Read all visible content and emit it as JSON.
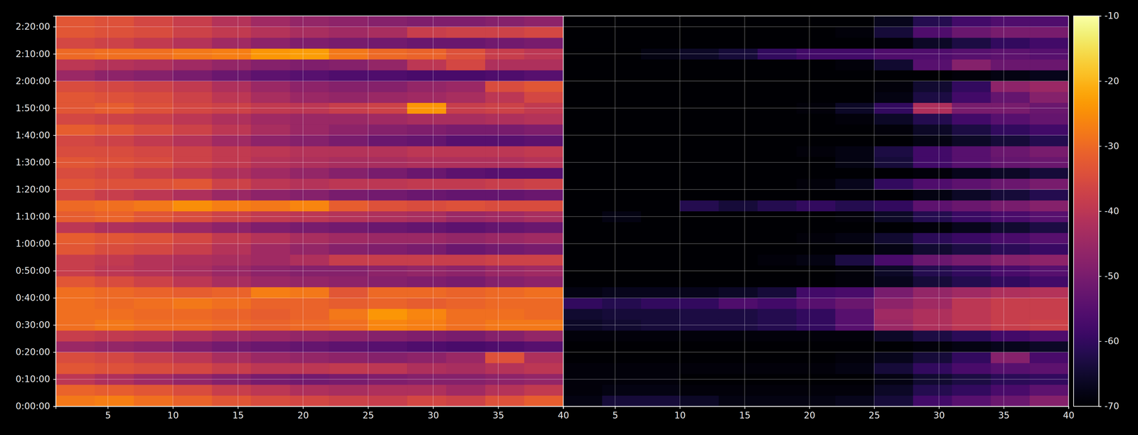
{
  "chart_data": [
    {
      "type": "heatmap",
      "x_edges": [
        1,
        4,
        7,
        10,
        13,
        16,
        19,
        22,
        25,
        28,
        31,
        34,
        37,
        40
      ],
      "y_edges": [
        0,
        240,
        480,
        720,
        960,
        1200,
        1440,
        1680,
        1920,
        2160,
        2400,
        2640,
        2880,
        3120,
        3360,
        3600,
        3840,
        4080,
        4320,
        4560,
        4800,
        5040,
        5280,
        5520,
        5760,
        6000,
        6240,
        6480,
        6720,
        6960,
        7200,
        7440,
        7680,
        7920,
        8160,
        8400,
        8640
      ],
      "cells": [
        [
          -28,
          -27,
          -29,
          -31,
          -33,
          -35,
          -36,
          -37,
          -38,
          -36,
          -37,
          -34,
          -32
        ],
        [
          -31,
          -32,
          -33,
          -35,
          -38,
          -40,
          -42,
          -43,
          -42,
          -42,
          -44,
          -41,
          -39
        ],
        [
          -40,
          -42,
          -44,
          -46,
          -48,
          -50,
          -51,
          -50,
          -49,
          -48,
          -48,
          -47,
          -46
        ],
        [
          -33,
          -34,
          -35,
          -36,
          -38,
          -40,
          -40,
          -39,
          -40,
          -42,
          -43,
          -41,
          -40
        ],
        [
          -35,
          -36,
          -38,
          -40,
          -43,
          -45,
          -46,
          -47,
          -48,
          -47,
          -45,
          -34,
          -42
        ],
        [
          -45,
          -46,
          -47,
          -49,
          -51,
          -52,
          -53,
          -54,
          -55,
          -56,
          -57,
          -56,
          -55
        ],
        [
          -38,
          -39,
          -40,
          -42,
          -44,
          -45,
          -46,
          -47,
          -48,
          -49,
          -50,
          -48,
          -46
        ],
        [
          -29,
          -28,
          -29,
          -29,
          -30,
          -31,
          -30,
          -29,
          -26,
          -27,
          -29,
          -28,
          -28
        ],
        [
          -29,
          -29,
          -30,
          -30,
          -31,
          -32,
          -31,
          -28,
          -24,
          -26,
          -29,
          -29,
          -30
        ],
        [
          -29,
          -30,
          -29,
          -28,
          -29,
          -31,
          -31,
          -32,
          -31,
          -32,
          -31,
          -30,
          -30
        ],
        [
          -29,
          -30,
          -31,
          -32,
          -31,
          -27,
          -28,
          -33,
          -30,
          -30,
          -31,
          -30,
          -29
        ],
        [
          -33,
          -35,
          -37,
          -40,
          -43,
          -45,
          -46,
          -47,
          -48,
          -49,
          -50,
          -48,
          -47
        ],
        [
          -38,
          -40,
          -41,
          -43,
          -45,
          -47,
          -48,
          -48,
          -47,
          -46,
          -47,
          -45,
          -44
        ],
        [
          -38,
          -39,
          -41,
          -42,
          -43,
          -44,
          -42,
          -38,
          -38,
          -38,
          -38,
          -37,
          -37
        ],
        [
          -33,
          -35,
          -36,
          -38,
          -41,
          -44,
          -46,
          -48,
          -49,
          -50,
          -52,
          -51,
          -50
        ],
        [
          -32,
          -33,
          -34,
          -36,
          -39,
          -41,
          -43,
          -44,
          -45,
          -45,
          -46,
          -45,
          -44
        ],
        [
          -40,
          -42,
          -43,
          -45,
          -47,
          -49,
          -50,
          -51,
          -52,
          -53,
          -54,
          -53,
          -52
        ],
        [
          -32,
          -31,
          -33,
          -35,
          -37,
          -39,
          -40,
          -41,
          -42,
          -43,
          -45,
          -44,
          -43
        ],
        [
          -30,
          -29,
          -28,
          -25,
          -27,
          -28,
          -26,
          -32,
          -34,
          -35,
          -34,
          -35,
          -35
        ],
        [
          -36,
          -38,
          -40,
          -42,
          -45,
          -47,
          -48,
          -50,
          -51,
          -52,
          -53,
          -53,
          -52
        ],
        [
          -33,
          -34,
          -34,
          -33,
          -37,
          -40,
          -41,
          -40,
          -40,
          -39,
          -39,
          -38,
          -37
        ],
        [
          -35,
          -36,
          -38,
          -40,
          -42,
          -44,
          -46,
          -48,
          -50,
          -52,
          -54,
          -55,
          -55
        ],
        [
          -33,
          -34,
          -35,
          -37,
          -39,
          -41,
          -42,
          -43,
          -43,
          -42,
          -42,
          -42,
          -41
        ],
        [
          -35,
          -35,
          -36,
          -37,
          -39,
          -40,
          -41,
          -41,
          -41,
          -40,
          -40,
          -40,
          -39
        ],
        [
          -36,
          -37,
          -39,
          -41,
          -44,
          -47,
          -48,
          -50,
          -52,
          -53,
          -55,
          -55,
          -54
        ],
        [
          -32,
          -33,
          -35,
          -37,
          -40,
          -43,
          -45,
          -47,
          -48,
          -49,
          -50,
          -50,
          -49
        ],
        [
          -36,
          -37,
          -38,
          -40,
          -42,
          -44,
          -45,
          -45,
          -44,
          -43,
          -43,
          -42,
          -41
        ],
        [
          -33,
          -32,
          -34,
          -36,
          -37,
          -39,
          -40,
          -38,
          -37,
          -24,
          -38,
          -37,
          -39
        ],
        [
          -33,
          -34,
          -35,
          -37,
          -40,
          -43,
          -45,
          -46,
          -45,
          -44,
          -43,
          -40,
          -36
        ],
        [
          -35,
          -36,
          -37,
          -39,
          -42,
          -45,
          -47,
          -48,
          -48,
          -46,
          -45,
          -35,
          -33
        ],
        [
          -45,
          -47,
          -48,
          -50,
          -52,
          -54,
          -55,
          -56,
          -56,
          -57,
          -57,
          -56,
          -55
        ],
        [
          -40,
          -41,
          -42,
          -44,
          -46,
          -48,
          -49,
          -48,
          -46,
          -40,
          -36,
          -42,
          -42
        ],
        [
          -30,
          -29,
          -29,
          -28,
          -27,
          -24,
          -23,
          -28,
          -30,
          -31,
          -34,
          -38,
          -40
        ],
        [
          -36,
          -37,
          -39,
          -41,
          -44,
          -47,
          -49,
          -50,
          -51,
          -52,
          -52,
          -51,
          -50
        ],
        [
          -33,
          -34,
          -35,
          -37,
          -39,
          -41,
          -43,
          -44,
          -43,
          -38,
          -37,
          -37,
          -36
        ],
        [
          -33,
          -34,
          -36,
          -38,
          -41,
          -44,
          -46,
          -47,
          -48,
          -49,
          -49,
          -48,
          -47
        ]
      ],
      "xlim": [
        1,
        40
      ],
      "xticks": [
        5,
        10,
        15,
        20,
        25,
        30,
        35,
        40
      ],
      "ylim": [
        0,
        8640
      ],
      "yticks": [
        {
          "value": 0,
          "label": "0:00:00"
        },
        {
          "value": 600,
          "label": "0:10:00"
        },
        {
          "value": 1200,
          "label": "0:20:00"
        },
        {
          "value": 1800,
          "label": "0:30:00"
        },
        {
          "value": 2400,
          "label": "0:40:00"
        },
        {
          "value": 3000,
          "label": "0:50:00"
        },
        {
          "value": 3600,
          "label": "1:00:00"
        },
        {
          "value": 4200,
          "label": "1:10:00"
        },
        {
          "value": 4800,
          "label": "1:20:00"
        },
        {
          "value": 5400,
          "label": "1:30:00"
        },
        {
          "value": 6000,
          "label": "1:40:00"
        },
        {
          "value": 6600,
          "label": "1:50:00"
        },
        {
          "value": 7200,
          "label": "2:00:00"
        },
        {
          "value": 7800,
          "label": "2:10:00"
        },
        {
          "value": 8400,
          "label": "2:20:00"
        }
      ],
      "zlim": [
        -70,
        -10
      ],
      "grid": true
    },
    {
      "type": "heatmap",
      "x_edges": [
        1,
        4,
        7,
        10,
        13,
        16,
        19,
        22,
        25,
        28,
        31,
        34,
        37,
        40
      ],
      "y_edges": [
        0,
        240,
        480,
        720,
        960,
        1200,
        1440,
        1680,
        1920,
        2160,
        2400,
        2640,
        2880,
        3120,
        3360,
        3600,
        3840,
        4080,
        4320,
        4560,
        4800,
        5040,
        5280,
        5520,
        5760,
        6000,
        6240,
        6480,
        6720,
        6960,
        7200,
        7440,
        7680,
        7920,
        8160,
        8400,
        8640
      ],
      "cells": [
        [
          -68,
          -64,
          -64,
          -66,
          -68,
          -68,
          -68,
          -67,
          -64,
          -58,
          -55,
          -52,
          -48
        ],
        [
          -69,
          -68,
          -68,
          -69,
          -69,
          -69,
          -69,
          -69,
          -66,
          -62,
          -60,
          -57,
          -54
        ],
        [
          -69,
          -69,
          -69,
          -70,
          -70,
          -70,
          -70,
          -70,
          -68,
          -65,
          -63,
          -61,
          -60
        ],
        [
          -69,
          -69,
          -69,
          -69,
          -69,
          -69,
          -69,
          -68,
          -64,
          -60,
          -57,
          -55,
          -54
        ],
        [
          -70,
          -70,
          -70,
          -70,
          -70,
          -70,
          -70,
          -69,
          -67,
          -64,
          -60,
          -48,
          -57
        ],
        [
          -70,
          -70,
          -70,
          -70,
          -70,
          -70,
          -70,
          -70,
          -70,
          -69,
          -68,
          -67,
          -66
        ],
        [
          -69,
          -69,
          -69,
          -69,
          -69,
          -69,
          -69,
          -69,
          -66,
          -63,
          -61,
          -58,
          -56
        ],
        [
          -66,
          -65,
          -64,
          -63,
          -63,
          -62,
          -60,
          -55,
          -45,
          -42,
          -40,
          -38,
          -37
        ],
        [
          -65,
          -64,
          -64,
          -63,
          -63,
          -62,
          -60,
          -55,
          -44,
          -42,
          -40,
          -38,
          -38
        ],
        [
          -60,
          -62,
          -60,
          -60,
          -56,
          -58,
          -55,
          -52,
          -47,
          -44,
          -40,
          -38,
          -38
        ],
        [
          -68,
          -67,
          -67,
          -67,
          -66,
          -64,
          -58,
          -57,
          -50,
          -46,
          -44,
          -42,
          -41
        ],
        [
          -70,
          -70,
          -70,
          -70,
          -70,
          -70,
          -70,
          -69,
          -67,
          -64,
          -62,
          -60,
          -58
        ],
        [
          -70,
          -70,
          -70,
          -70,
          -70,
          -70,
          -70,
          -69,
          -66,
          -62,
          -60,
          -57,
          -55
        ],
        [
          -70,
          -70,
          -70,
          -70,
          -70,
          -69,
          -68,
          -63,
          -57,
          -52,
          -50,
          -48,
          -47
        ],
        [
          -70,
          -70,
          -70,
          -70,
          -70,
          -70,
          -70,
          -70,
          -68,
          -65,
          -63,
          -61,
          -59
        ],
        [
          -70,
          -70,
          -70,
          -70,
          -70,
          -70,
          -69,
          -68,
          -65,
          -61,
          -59,
          -57,
          -55
        ],
        [
          -70,
          -70,
          -70,
          -70,
          -70,
          -70,
          -70,
          -70,
          -70,
          -69,
          -67,
          -65,
          -63
        ],
        [
          -70,
          -68,
          -70,
          -70,
          -70,
          -70,
          -70,
          -69,
          -66,
          -62,
          -59,
          -57,
          -55
        ],
        [
          -70,
          -70,
          -70,
          -62,
          -64,
          -62,
          -60,
          -62,
          -60,
          -54,
          -52,
          -50,
          -48
        ],
        [
          -70,
          -70,
          -70,
          -70,
          -70,
          -70,
          -70,
          -70,
          -70,
          -68,
          -66,
          -64,
          -62
        ],
        [
          -70,
          -70,
          -70,
          -70,
          -70,
          -70,
          -69,
          -67,
          -60,
          -56,
          -54,
          -52,
          -50
        ],
        [
          -70,
          -70,
          -70,
          -70,
          -70,
          -70,
          -70,
          -70,
          -70,
          -69,
          -67,
          -66,
          -64
        ],
        [
          -70,
          -70,
          -70,
          -70,
          -70,
          -70,
          -70,
          -68,
          -64,
          -58,
          -55,
          -53,
          -52
        ],
        [
          -70,
          -70,
          -70,
          -70,
          -70,
          -70,
          -69,
          -68,
          -63,
          -58,
          -55,
          -52,
          -50
        ],
        [
          -70,
          -70,
          -70,
          -70,
          -70,
          -70,
          -70,
          -70,
          -70,
          -68,
          -66,
          -64,
          -62
        ],
        [
          -70,
          -70,
          -70,
          -70,
          -70,
          -70,
          -70,
          -70,
          -69,
          -66,
          -63,
          -60,
          -58
        ],
        [
          -70,
          -70,
          -70,
          -70,
          -70,
          -70,
          -70,
          -69,
          -66,
          -62,
          -58,
          -55,
          -53
        ],
        [
          -70,
          -70,
          -70,
          -70,
          -70,
          -70,
          -69,
          -66,
          -60,
          -42,
          -50,
          -50,
          -52
        ],
        [
          -70,
          -70,
          -70,
          -70,
          -70,
          -70,
          -70,
          -70,
          -68,
          -63,
          -58,
          -53,
          -48
        ],
        [
          -70,
          -70,
          -70,
          -70,
          -70,
          -70,
          -70,
          -70,
          -69,
          -65,
          -60,
          -47,
          -45
        ],
        [
          -70,
          -70,
          -70,
          -70,
          -70,
          -70,
          -70,
          -70,
          -70,
          -70,
          -69,
          -68,
          -67
        ],
        [
          -70,
          -70,
          -70,
          -70,
          -70,
          -70,
          -70,
          -69,
          -65,
          -55,
          -48,
          -52,
          -52
        ],
        [
          -70,
          -70,
          -68,
          -66,
          -64,
          -60,
          -58,
          -58,
          -56,
          -56,
          -55,
          -54,
          -55
        ],
        [
          -70,
          -70,
          -70,
          -70,
          -70,
          -70,
          -70,
          -70,
          -69,
          -66,
          -63,
          -60,
          -58
        ],
        [
          -70,
          -70,
          -70,
          -70,
          -70,
          -70,
          -70,
          -69,
          -64,
          -56,
          -52,
          -50,
          -50
        ],
        [
          -70,
          -70,
          -70,
          -70,
          -70,
          -70,
          -70,
          -70,
          -67,
          -62,
          -58,
          -56,
          -56
        ]
      ],
      "xlim": [
        1,
        40
      ],
      "xticks": [
        5,
        10,
        15,
        20,
        25,
        30,
        35,
        40
      ],
      "ylim": [
        0,
        8640
      ],
      "yticks": [
        0,
        600,
        1200,
        1800,
        2400,
        3000,
        3600,
        4200,
        4800,
        5400,
        6000,
        6600,
        7200,
        7800,
        8400
      ],
      "tick_labels": "x",
      "zlim": [
        -70,
        -10
      ],
      "zticks": [
        -70,
        -60,
        -50,
        -40,
        -30,
        -20,
        -10
      ],
      "grid": true
    }
  ]
}
